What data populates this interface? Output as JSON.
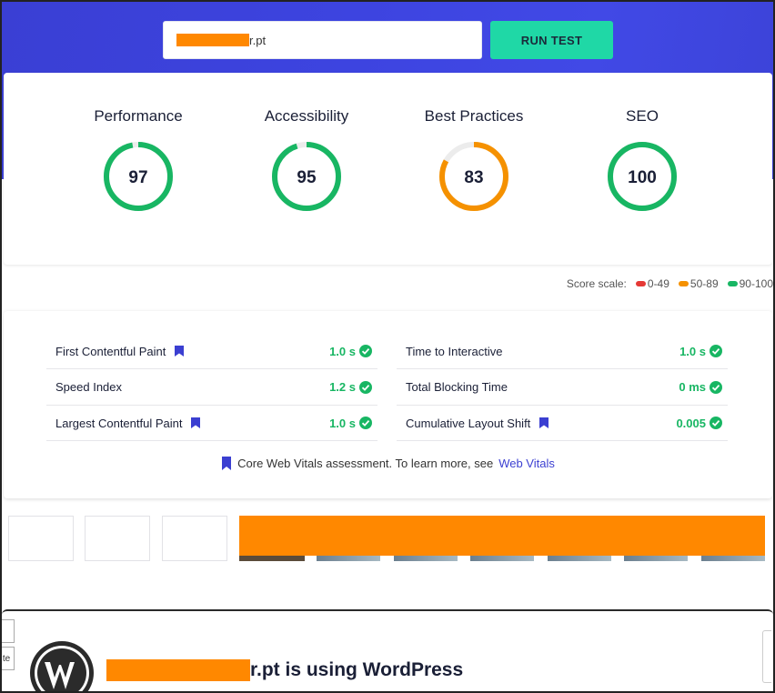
{
  "header": {
    "url_value": "r.pt",
    "run_label": "RUN TEST"
  },
  "scores": [
    {
      "label": "Performance",
      "value": 97,
      "color": "#18b663"
    },
    {
      "label": "Accessibility",
      "value": 95,
      "color": "#18b663"
    },
    {
      "label": "Best Practices",
      "value": 83,
      "color": "#f59100"
    },
    {
      "label": "SEO",
      "value": 100,
      "color": "#18b663"
    }
  ],
  "score_scale": {
    "label": "Score scale:",
    "ranges": [
      {
        "text": "0-49",
        "color": "#e53935"
      },
      {
        "text": "50-89",
        "color": "#f59100"
      },
      {
        "text": "90-100",
        "color": "#18b663"
      }
    ]
  },
  "metrics": {
    "left": [
      {
        "label": "First Contentful Paint",
        "value": "1.0 s",
        "core_vital": true
      },
      {
        "label": "Speed Index",
        "value": "1.2 s",
        "core_vital": false
      },
      {
        "label": "Largest Contentful Paint",
        "value": "1.0 s",
        "core_vital": true
      }
    ],
    "right": [
      {
        "label": "Time to Interactive",
        "value": "1.0 s",
        "core_vital": false
      },
      {
        "label": "Total Blocking Time",
        "value": "0 ms",
        "core_vital": false
      },
      {
        "label": "Cumulative Layout Shift",
        "value": "0.005",
        "core_vital": true
      }
    ],
    "note_text": "Core Web Vitals assessment. To learn more, see",
    "note_link": "Web Vitals"
  },
  "wordpress": {
    "title_suffix": "r.pt is using WordPress"
  },
  "side_boxes": [
    "",
    "te"
  ],
  "colors": {
    "accent": "#3b3fd1",
    "run_button": "#1fd8a6",
    "redaction": "#ff8800",
    "pass": "#18b663"
  },
  "icons": [
    "bookmark-icon",
    "check-circle-icon",
    "wordpress-logo-icon"
  ]
}
